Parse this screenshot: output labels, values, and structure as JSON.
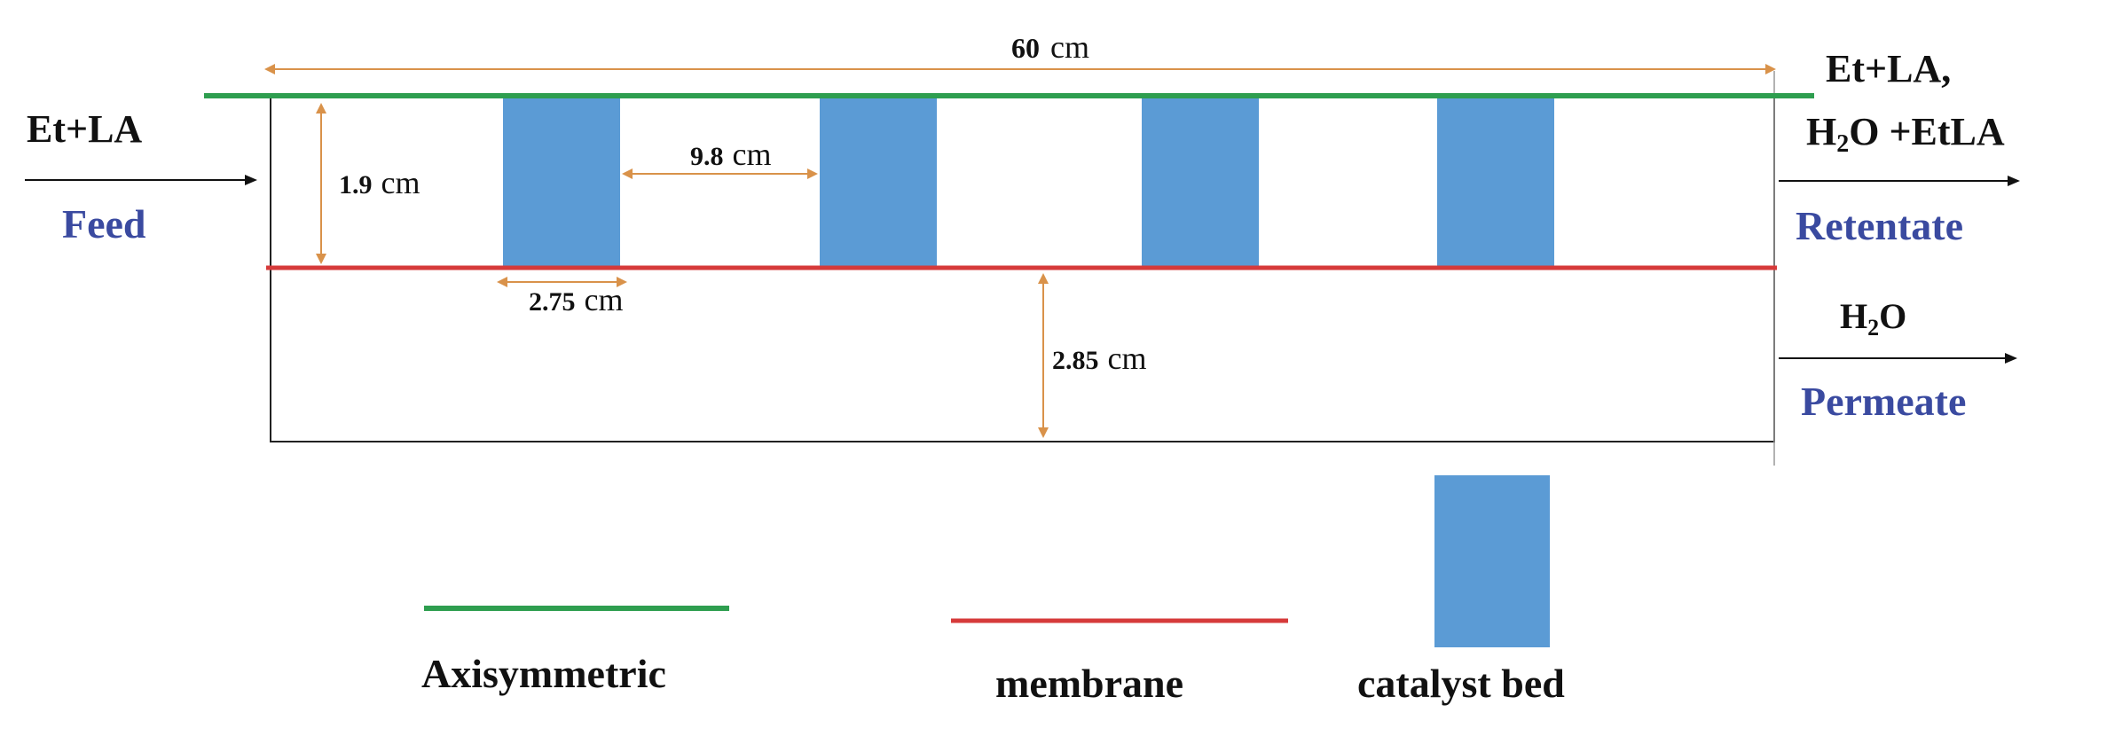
{
  "inlet": {
    "species": "Et+LA",
    "label": "Feed"
  },
  "outlets": {
    "retentate": {
      "species_line1": "Et+LA,",
      "species_line2_h": "H",
      "species_line2_sub": "2",
      "species_line2_rest": "O +EtLA",
      "label": "Retentate"
    },
    "permeate": {
      "species_h": "H",
      "species_sub": "2",
      "species_rest": "O",
      "label": "Permeate"
    }
  },
  "dimensions": [
    {
      "value": "60",
      "unit": "cm"
    },
    {
      "value": "1.9",
      "unit": "cm"
    },
    {
      "value": "9.8",
      "unit": "cm"
    },
    {
      "value": "2.75",
      "unit": "cm"
    },
    {
      "value": "2.85",
      "unit": "cm"
    }
  ],
  "catalyst_bed_count": 4,
  "legend": {
    "axisymmetric": "Axisymmetric",
    "membrane": "membrane",
    "catalyst_bed": "catalyst bed"
  },
  "colors": {
    "axisymmetric": "#2e9e4f",
    "membrane": "#d63a3a",
    "catalyst_bed": "#5b9bd5",
    "dimension_arrow": "#d9924a",
    "stream_label": "#3a4aa0"
  }
}
